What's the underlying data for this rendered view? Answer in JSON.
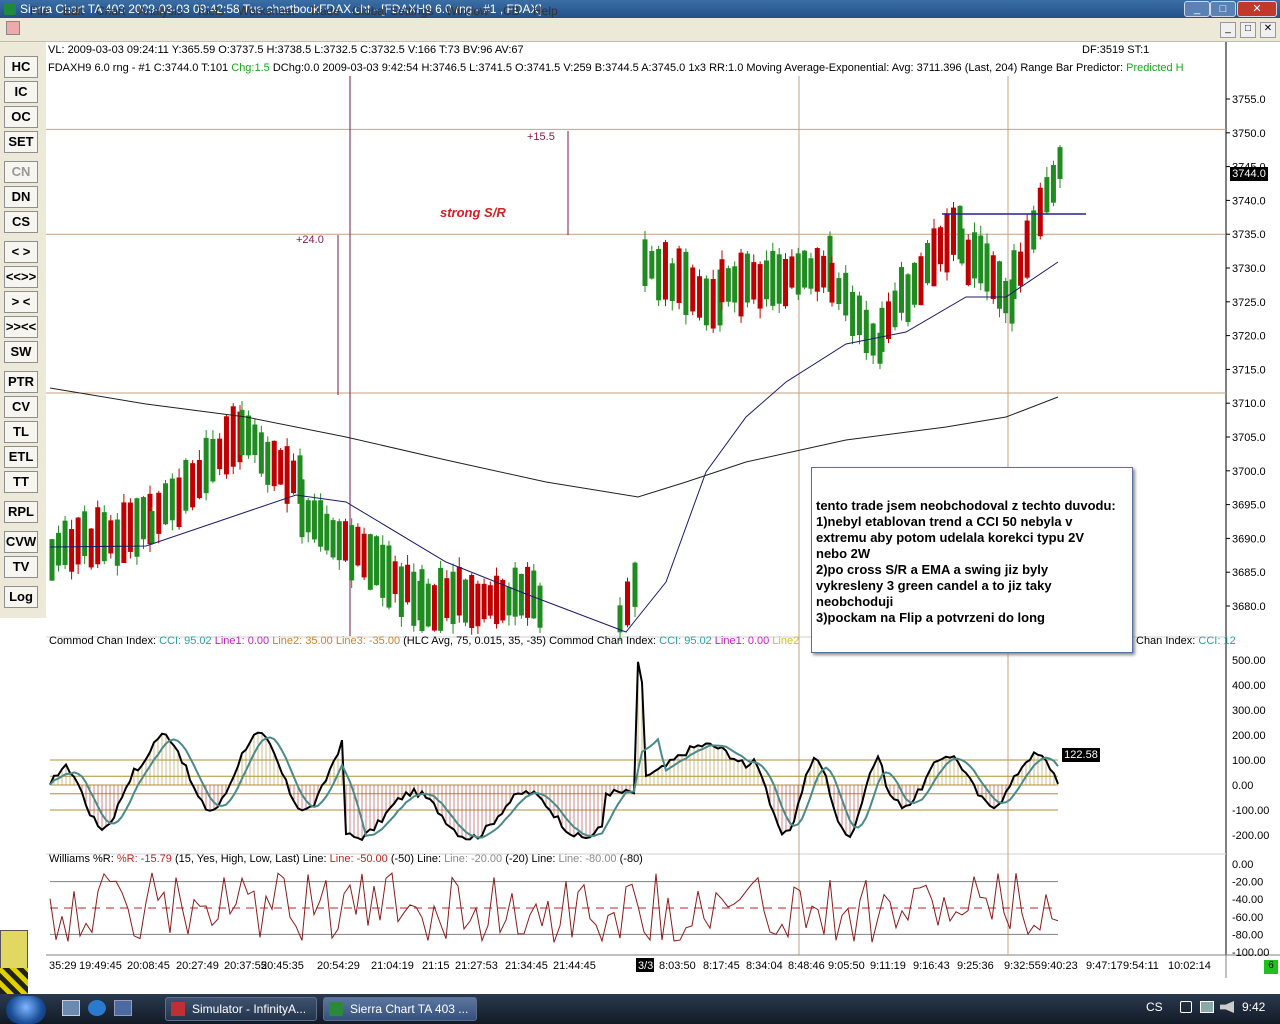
{
  "window": {
    "title": "Sierra Chart TA 403  2009-03-03  09:42:58  Tue   chartbookFDAX.cht - [FDAXH9  6.0 rng - #1 , FDAX]",
    "minimize": "_",
    "maximize": "□",
    "close": "✕"
  },
  "menu": [
    "File",
    "Edit",
    "Chart",
    "Analysis",
    "Tools",
    "Worksheet",
    "Trade",
    "Global Settings",
    "Window",
    "CB",
    "Help"
  ],
  "toolbar": [
    "HC",
    "IC",
    "OC",
    "SET",
    "CN",
    "DN",
    "CS",
    "< >",
    "<<>>",
    "> <",
    ">><<",
    "SW",
    "PTR",
    "CV",
    "TL",
    "ETL",
    "TT",
    "RPL",
    "CVW",
    "TV",
    "Log"
  ],
  "statusline": "VL: 2009-03-03  09:24:11  Y:365.59  O:3737.5  H:3738.5  L:3732.5  C:3732.5  V:166  T:73  BV:96  AV:67",
  "df_st": "DF:3519  ST:1",
  "header": {
    "symbol": "FDAXH9  6.0 rng - #1  C:3744.0  T:101",
    "chg": "Chg:1.5",
    "rest": "DChg:0.0  2009-03-03  9:42:54  H:3746.5  L:3741.5  O:3741.5  V:259  B:3744.5  A:3745.0  1x3  RR:1.0  Moving Average-Exponential:  Avg: 3711.396   (Last, 204)   Range Bar Predictor:",
    "predicted": "Predicted H"
  },
  "price_axis": [
    "3755.0",
    "3750.0",
    "3745.0",
    "3740.0",
    "3735.0",
    "3730.0",
    "3725.0",
    "3720.0",
    "3715.0",
    "3710.0",
    "3705.0",
    "3700.0",
    "3695.0",
    "3690.0",
    "3685.0",
    "3680.0"
  ],
  "last_price": "3744.0",
  "annotations": {
    "strong_sr": "strong S/R",
    "plus_15_5": "+15.5",
    "plus_24_0": "+24.0"
  },
  "note_lines": [
    "tento trade jsem neobchodoval z techto duvodu:",
    "1)nebyl etablovan trend a CCI 50 nebyla v",
    "extremu aby potom udelala korekci typu 2V",
    "nebo 2W",
    "2)po cross  S/R a EMA a swing jiz byly",
    "vykresleny 3 green candel a to jiz taky",
    "neobchoduji",
    "3)pockam na Flip a potvrzeni do long"
  ],
  "cci": {
    "name": "Commod Chan Index:",
    "cci": "CCI: 95.02",
    "line1": "Line1: 0.00",
    "line2": "Line2: 35.00",
    "line3": "Line3: -35.00",
    "params": "(HLC Avg, 75, 0.015, 35, -35)",
    "name2": "Commod Chan Index:",
    "cci2": "CCI: 95.02",
    "line1b": "Line1: 0.00",
    "line2b": "Line2",
    "name3": "Chan Index:",
    "cci3": "CCI: 12",
    "axis": [
      "500.00",
      "400.00",
      "300.00",
      "200.00",
      "100.00",
      "0.00",
      "-100.00",
      "-200.00"
    ],
    "last": "122.58"
  },
  "williams": {
    "name": "Williams %R:",
    "r": "%R: -15.79",
    "params": "(15, Yes, High, Low, Last)",
    "line_a_lbl": "Line:",
    "line_a": "Line: -50.00",
    "line_a_p": "(-50)",
    "line_b_lbl": "Line:",
    "line_b": "Line: -20.00",
    "line_b_p": "(-20)",
    "line_c_lbl": "Line:",
    "line_c": "Line: -80.00",
    "line_c_p": "(-80)",
    "axis": [
      "0.00",
      "-20.00",
      "-40.00",
      "-60.00",
      "-80.00",
      "-100.00"
    ]
  },
  "time_axis": [
    "35:29",
    "19:49:45",
    "20:08:45",
    "20:27:49",
    "20:37:55",
    "20:45:35",
    "20:54:29",
    "21:04:19",
    "21:15",
    "21:27:53",
    "21:34:45",
    "21:44:45",
    "3/3",
    "8:03:50",
    "8:17:45",
    "8:34:04",
    "8:48:46",
    "9:05:50",
    "9:11:19",
    "9:16:43",
    "9:25:36",
    "9:32:55",
    "9:40:23",
    "9:47:17",
    "9:54:11",
    "10:02:14"
  ],
  "corner_box": "6",
  "taskbar": {
    "items": [
      "Simulator - InfinityA...",
      "Sierra Chart TA 403 ..."
    ],
    "lang": "CS",
    "clock": "9:42"
  },
  "colors": {
    "up_candle": "#1e8c1e",
    "down_candle": "#c00000",
    "sr_line": "#c8a080",
    "ema": "#1a1a6a",
    "cci_line": "#000000",
    "cci_avg": "#4a8a8a",
    "note_border": "#5670a0"
  },
  "chart_data": {
    "type": "candlestick",
    "symbol": "FDAXH9",
    "bar_type": "6.0 rng",
    "price_range": [
      3677,
      3757
    ],
    "last": 3744.0,
    "sr_levels": [
      3750.5,
      3735.0,
      3711.5
    ],
    "cci_range": [
      -250,
      520
    ],
    "cci_last": 122.58,
    "williams_last": -15.79
  }
}
